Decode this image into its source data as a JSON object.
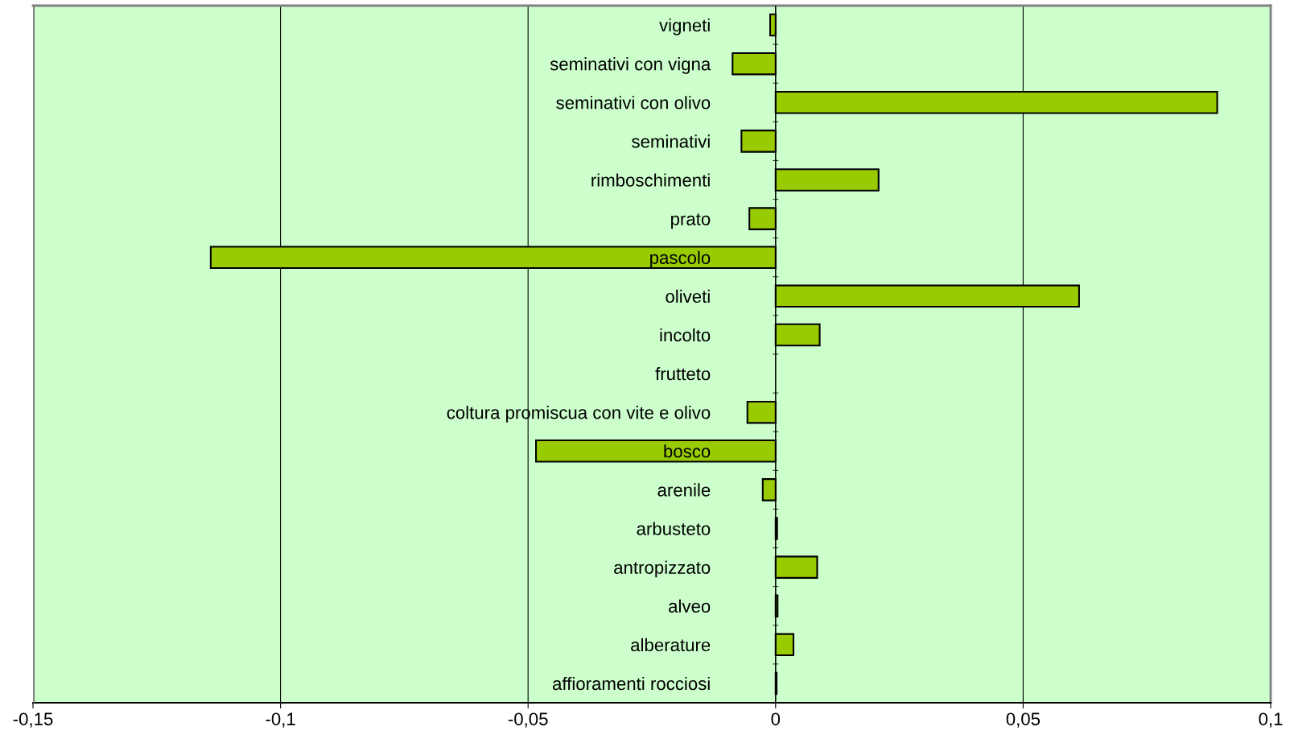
{
  "chart_data": {
    "type": "bar",
    "orientation": "horizontal",
    "categories": [
      "vigneti",
      "seminativi con vigna",
      "seminativi con olivo",
      "seminativi",
      "rimboschimenti",
      "prato",
      "pascolo",
      "oliveti",
      "incolto",
      "frutteto",
      "coltura promiscua con vite e olivo",
      "bosco",
      "arenile",
      "arbusteto",
      "antropizzato",
      "alveo",
      "alberature",
      "affioramenti rocciosi"
    ],
    "values": [
      -0.0011,
      -0.0087,
      0.0892,
      -0.0069,
      0.0208,
      -0.0053,
      -0.1141,
      0.0613,
      0.0089,
      0,
      -0.0057,
      -0.0484,
      -0.0026,
      0.0003,
      0.0084,
      0.0004,
      0.0036,
      0.0002
    ],
    "color": "#99cc00",
    "xlim": [
      -0.15,
      0.1
    ],
    "xticks": [
      {
        "value": -0.15,
        "label": "-0,15"
      },
      {
        "value": -0.1,
        "label": "-0,1"
      },
      {
        "value": -0.05,
        "label": "-0,05"
      },
      {
        "value": 0,
        "label": "0"
      },
      {
        "value": 0.05,
        "label": "0,05"
      },
      {
        "value": 0.1,
        "label": "0,1"
      }
    ],
    "grid": "x",
    "legend": false
  }
}
